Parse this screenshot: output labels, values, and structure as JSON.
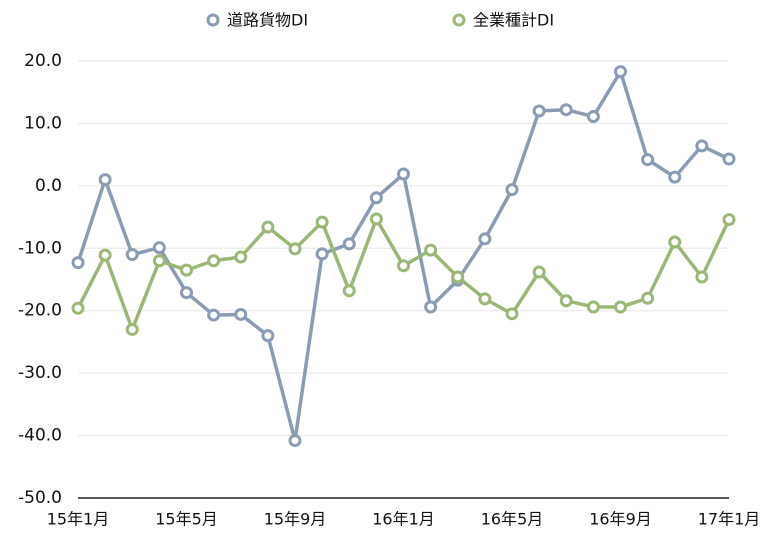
{
  "chart_data": {
    "type": "line",
    "categories": [
      "15年1月",
      null,
      null,
      null,
      "15年5月",
      null,
      null,
      null,
      "15年9月",
      null,
      null,
      null,
      "16年1月",
      null,
      null,
      null,
      "16年5月",
      null,
      null,
      null,
      "16年9月",
      null,
      null,
      null,
      "17年1月"
    ],
    "series": [
      {
        "name": "道路貨物DI",
        "color": "#8a9bb5",
        "values": [
          -12.3,
          1.0,
          -11.0,
          -9.9,
          -17.1,
          -20.7,
          -20.6,
          -24.0,
          -40.8,
          -10.9,
          -9.3,
          -1.9,
          1.9,
          -19.4,
          -15.1,
          -8.5,
          -0.6,
          12.0,
          12.2,
          11.1,
          18.3,
          4.2,
          1.4,
          6.4,
          4.3
        ]
      },
      {
        "name": "全業種計DI",
        "color": "#9ab873",
        "values": [
          -19.6,
          -11.1,
          -23.0,
          -12.0,
          -13.5,
          -12.0,
          -11.4,
          -6.6,
          -10.1,
          -5.8,
          -16.8,
          -5.3,
          -12.8,
          -10.3,
          -14.6,
          -18.1,
          -20.5,
          -13.8,
          -18.4,
          -19.4,
          -19.4,
          -18.0,
          -9.0,
          -14.6,
          -5.4
        ]
      }
    ],
    "ylim": [
      -50,
      20
    ],
    "yticks": [
      {
        "value": -50,
        "label": "-50.0"
      },
      {
        "value": -40,
        "label": "-40.0"
      },
      {
        "value": -30,
        "label": "-30.0"
      },
      {
        "value": -20,
        "label": "-20.0"
      },
      {
        "value": -10,
        "label": "-10.0"
      },
      {
        "value": 0,
        "label": "0.0"
      },
      {
        "value": 10,
        "label": "10.0"
      },
      {
        "value": 20,
        "label": "20.0"
      }
    ],
    "grid": true,
    "legend": "top"
  }
}
